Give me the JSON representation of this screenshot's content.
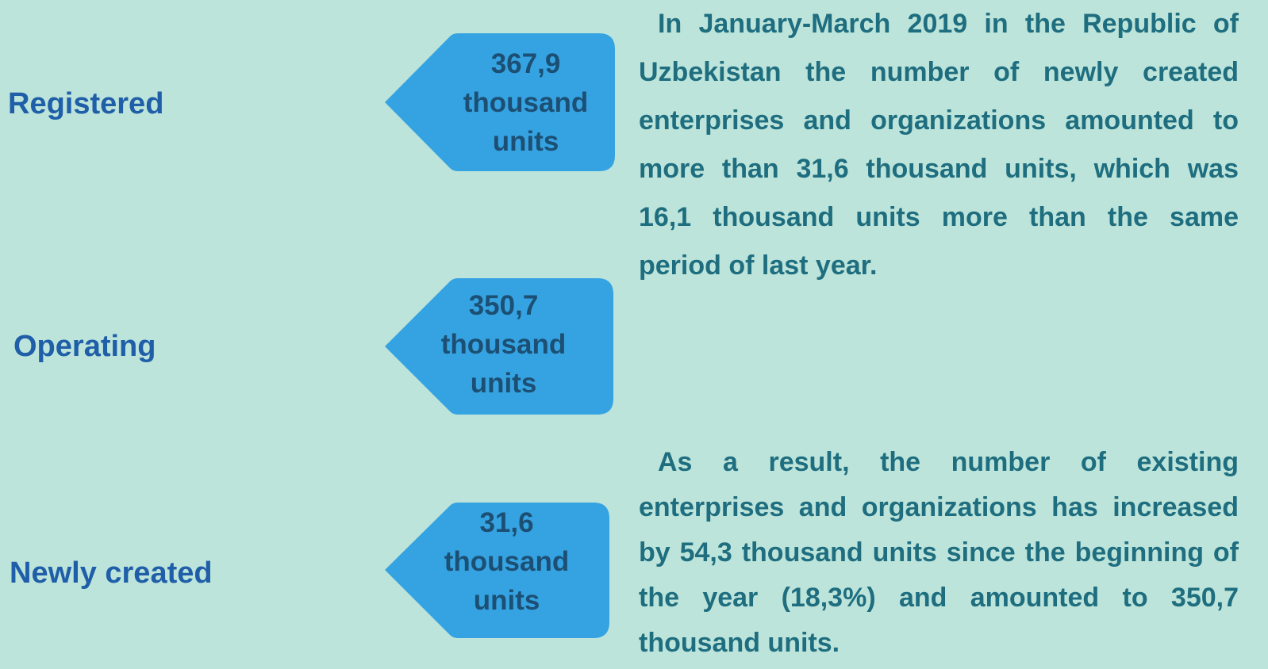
{
  "items": [
    {
      "label": "Registered",
      "value": "367,9",
      "unit": "thousand units"
    },
    {
      "label": "Operating",
      "value": "350,7",
      "unit": "thousand units"
    },
    {
      "label": "Newly created",
      "value": "31,6",
      "unit": "thousand units"
    }
  ],
  "paragraphs": [
    "In January-March 2019 in the Republic of Uzbekistan the number of newly created enterprises and organizations amounted to more than 31,6 thousand units, which was 16,1 thousand units more than the same period of last year.",
    "As a result, the number of existing enterprises and organizations has increased by 54,3 thousand units since the beginning of the year (18,3%) and amounted to 350,7 thousand units."
  ]
}
